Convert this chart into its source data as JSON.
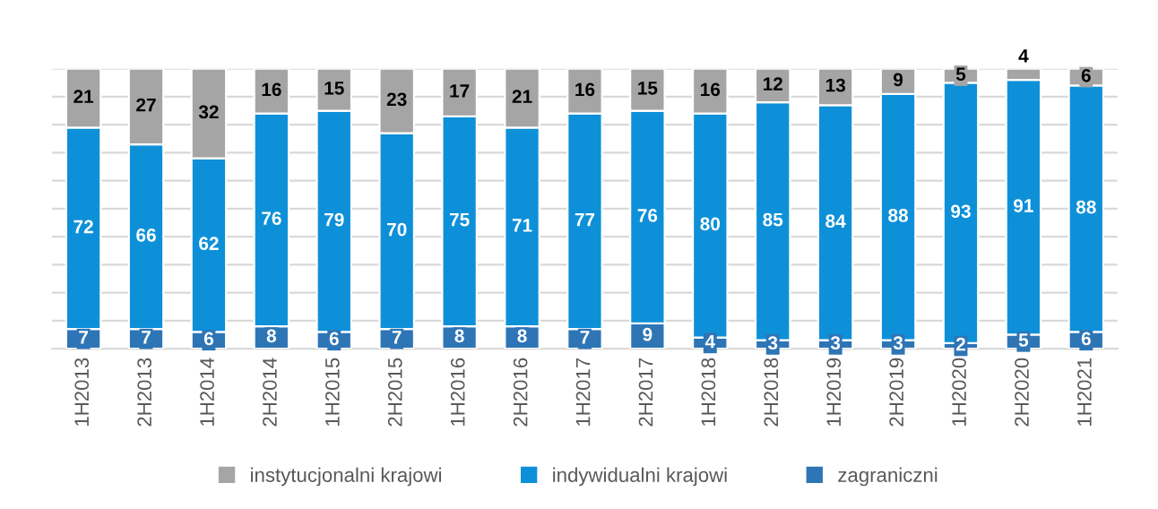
{
  "chart_data": {
    "type": "bar",
    "stacked": true,
    "data_labels": true,
    "grid": "y",
    "legend": "bottom",
    "tick_labels": "x",
    "categories": [
      "1H2013",
      "2H2013",
      "1H2014",
      "2H2014",
      "1H2015",
      "2H2015",
      "1H2016",
      "2H2016",
      "1H2017",
      "2H2017",
      "1H2018",
      "2H2018",
      "1H2019",
      "2H2019",
      "1H2020",
      "2H2020",
      "1H2021"
    ],
    "ylim": [
      0,
      100
    ],
    "yticks": [
      {
        "value": 0,
        "label": null
      },
      {
        "value": 10,
        "label": null
      },
      {
        "value": 20,
        "label": null
      },
      {
        "value": 30,
        "label": null
      },
      {
        "value": 40,
        "label": null
      },
      {
        "value": 50,
        "label": null
      },
      {
        "value": 60,
        "label": null
      },
      {
        "value": 70,
        "label": null
      },
      {
        "value": 80,
        "label": null
      },
      {
        "value": 90,
        "label": null
      },
      {
        "value": 100,
        "label": null
      }
    ],
    "series": [
      {
        "name": "zagraniczni",
        "color": "#2e75b6",
        "values": [
          7,
          7,
          6,
          8,
          6,
          7,
          8,
          8,
          7,
          9,
          4,
          3,
          3,
          3,
          2,
          5,
          6
        ]
      },
      {
        "name": "indywidualni krajowi",
        "color": "#0e90d8",
        "values": [
          72,
          66,
          62,
          76,
          79,
          70,
          75,
          71,
          77,
          76,
          80,
          85,
          84,
          88,
          93,
          91,
          88
        ]
      },
      {
        "name": "instytucjonalni krajowi",
        "color": "#a5a5a5",
        "values": [
          21,
          27,
          32,
          16,
          15,
          23,
          17,
          21,
          16,
          15,
          16,
          12,
          13,
          9,
          5,
          4,
          6
        ]
      }
    ]
  }
}
